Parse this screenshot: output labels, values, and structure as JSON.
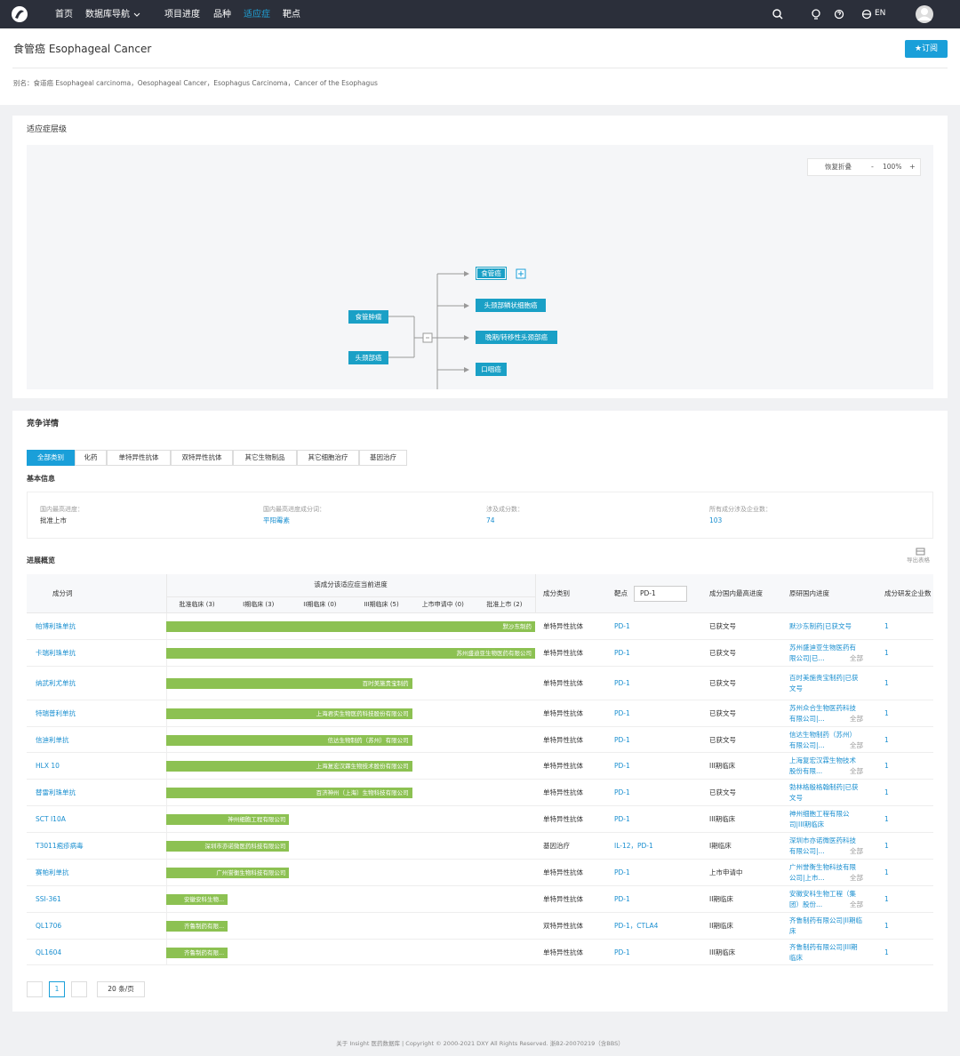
{
  "nav": {
    "items": [
      "首页",
      "数据库导航",
      "项目进度",
      "品种",
      "适应症",
      "靶点"
    ],
    "language": "EN"
  },
  "header": {
    "title": "食管癌 Esophageal Cancer",
    "subscribe": "★订阅",
    "alias": "别名：食道癌 Esophageal carcinoma，Oesophageal Cancer，Esophagus Carcinoma，Cancer of the Esophagus"
  },
  "hierarchy": {
    "title": "适应症层级",
    "toolbar": {
      "restore": "恢复折叠",
      "minus": "-",
      "zoom": "100%",
      "plus": "+"
    },
    "parents": [
      "食管肿瘤",
      "头颈部癌"
    ],
    "children": [
      "食管癌",
      "头颈部鳞状细胞癌",
      "晚期/转移性头颈部癌",
      "口咽癌"
    ]
  },
  "competition": {
    "title": "竞争详情",
    "tabs": [
      "全部类别",
      "化药",
      "单特异性抗体",
      "双特异性抗体",
      "其它生物制品",
      "其它细胞治疗",
      "基因治疗"
    ],
    "basic_title": "基本信息",
    "basic": [
      {
        "label": "国内最高进度：",
        "value": "批准上市"
      },
      {
        "label": "国内最高进度成分词：",
        "value": "平阳霉素"
      },
      {
        "label": "涉及成分数：",
        "value": 74
      },
      {
        "label": "所有成分涉及企业数：",
        "value": 103
      }
    ],
    "overview_title": "进展概览",
    "export": "导出表格",
    "table": {
      "headers": {
        "name": "成分词",
        "progress": "该成分该适应症当前进度",
        "stages": [
          "批准临床 (3)",
          "I期临床 (3)",
          "II期临床 (0)",
          "III期临床 (5)",
          "上市申请中 (0)",
          "批准上市 (2)"
        ],
        "category": "成分类别",
        "target": "靶点",
        "target_filter": "PD-1",
        "highest": "成分国内最高进度",
        "original": "原研国内进度",
        "companies": "成分研发企业数"
      },
      "rows": [
        {
          "name": "帕博利珠单抗",
          "company": "默沙东制药",
          "stage": 6,
          "category": "单特异性抗体",
          "targets": "PD-1",
          "highest": "已获文号",
          "original": "默沙东制药|已获文号",
          "companies": 1
        },
        {
          "name": "卡瑞利珠单抗",
          "company": "苏州盛迪亚生物医药有限公司",
          "stage": 6,
          "category": "单特异性抗体",
          "targets": "PD-1",
          "highest": "已获文号",
          "original": "苏州盛迪亚生物医药有限公司|已...",
          "more": "全部",
          "companies": 1
        },
        {
          "name": "纳武利尤单抗",
          "company": "百时美施贵宝制药",
          "stage": 4,
          "category": "单特异性抗体",
          "targets": "PD-1",
          "highest": "已获文号",
          "original": "百时美施贵宝制药|已获文号",
          "companies": 1
        },
        {
          "name": "特瑞普利单抗",
          "company": "上海君实生物医药科技股份有限公司",
          "stage": 4,
          "category": "单特异性抗体",
          "targets": "PD-1",
          "highest": "已获文号",
          "original": "苏州众合生物医药科技有限公司|...",
          "more": "全部",
          "companies": 1
        },
        {
          "name": "信迪利单抗",
          "company": "信达生物制药（苏州）有限公司",
          "stage": 4,
          "category": "单特异性抗体",
          "targets": "PD-1",
          "highest": "已获文号",
          "original": "信达生物制药（苏州）有限公司|...",
          "more": "全部",
          "companies": 1
        },
        {
          "name": "HLX 10",
          "company": "上海复宏汉霖生物技术股份有限公司",
          "stage": 4,
          "category": "单特异性抗体",
          "targets": "PD-1",
          "highest": "III期临床",
          "original": "上海复宏汉霖生物技术股份有限...",
          "more": "全部",
          "companies": 1
        },
        {
          "name": "替雷利珠单抗",
          "company": "百济神州（上海）生物科技有限公司",
          "stage": 4,
          "category": "单特异性抗体",
          "targets": "PD-1",
          "highest": "已获文号",
          "original": "勃林格殷格翰制药|已获文号",
          "companies": 1
        },
        {
          "name": "SCT I10A",
          "company": "神州细胞工程有限公司",
          "stage": 2,
          "category": "单特异性抗体",
          "targets": "PD-1",
          "highest": "III期临床",
          "original": "神州细胞工程有限公司|III期临床",
          "companies": 1
        },
        {
          "name": "T3011疱疹病毒",
          "company": "深圳市亦诺微医药科技有限公司",
          "stage": 2,
          "category": "基因治疗",
          "targets": "IL-12，PD-1",
          "highest": "I期临床",
          "original": "深圳市亦诺微医药科技有限公司|...",
          "more": "全部",
          "companies": 1
        },
        {
          "name": "赛帕利单抗",
          "company": "广州誉衡生物科技有限公司",
          "stage": 2,
          "category": "单特异性抗体",
          "targets": "PD-1",
          "highest": "上市申请中",
          "original": "广州誉衡生物科技有限公司|上市...",
          "more": "全部",
          "companies": 1
        },
        {
          "name": "SSI-361",
          "company": "安徽安科生物...",
          "stage": 1,
          "category": "单特异性抗体",
          "targets": "PD-1",
          "highest": "II期临床",
          "original": "安徽安科生物工程（集团）股份...",
          "more": "全部",
          "companies": 1
        },
        {
          "name": "QL1706",
          "company": "齐鲁制药有限...",
          "stage": 1,
          "category": "双特异性抗体",
          "targets": "PD-1，CTLA4",
          "highest": "II期临床",
          "original": "齐鲁制药有限公司|II期临床",
          "companies": 1
        },
        {
          "name": "QL1604",
          "company": "齐鲁制药有限...",
          "stage": 1,
          "category": "单特异性抗体",
          "targets": "PD-1",
          "highest": "III期临床",
          "original": "齐鲁制药有限公司|III期临床",
          "companies": 1
        }
      ]
    },
    "pagination": {
      "page": 1,
      "page_size": "20 条/页"
    }
  },
  "footer": "关于 Insight 医药数据库 | Copyright © 2000-2021 DXY All Rights Reserved. 浙B2-20070219（含BBS）"
}
